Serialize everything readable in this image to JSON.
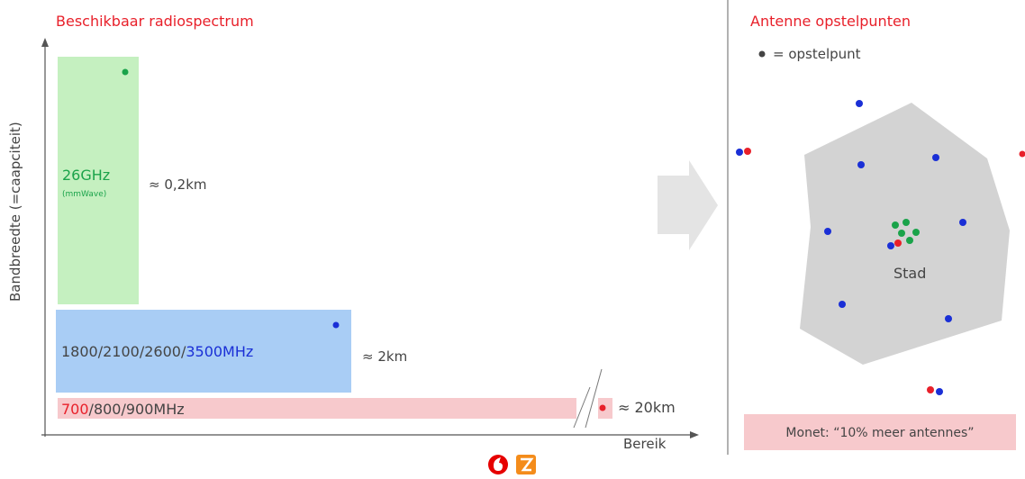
{
  "left_panel": {
    "title": "Beschikbaar radiospectrum",
    "y_axis_label": "Bandbreedte (=caapciteit)",
    "x_axis_label": "Bereik",
    "bands": [
      {
        "label": "26GHz",
        "sublabel": "(mmWave)",
        "range": "≈ 0,2km"
      },
      {
        "label_parts": [
          "1800/2100/2600/",
          "3500MHz"
        ],
        "range": "≈ 2km"
      },
      {
        "label_parts": [
          "700",
          "/800/900MHz"
        ],
        "range": "≈ 20km"
      }
    ]
  },
  "right_panel": {
    "title": "Antenne opstelpunten",
    "legend": "= opstelpunt",
    "city": "Stad",
    "note": "Monet: “10% meer antennes”"
  }
}
